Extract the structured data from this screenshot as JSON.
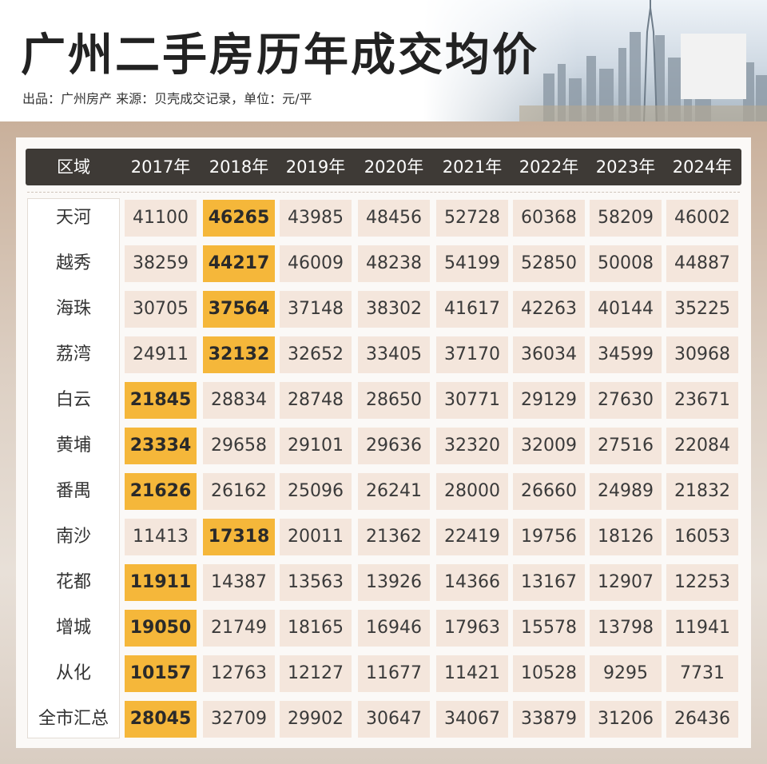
{
  "header": {
    "title": "广州二手房历年成交均价",
    "subtitle": "出品：广州房产  来源：贝壳成交记录，单位：元/平"
  },
  "colors": {
    "header_bar": "#3e3a36",
    "cell_bg": "#f4e6dc",
    "highlight": "#f5b73a",
    "panel_bg": "#c9b09b"
  },
  "chart_data": {
    "type": "table",
    "columns": [
      "区域",
      "2017年",
      "2018年",
      "2019年",
      "2020年",
      "2021年",
      "2022年",
      "2023年",
      "2024年"
    ],
    "rows": [
      {
        "region": "天河",
        "values": [
          "41100",
          "46265",
          "43985",
          "48456",
          "52728",
          "60368",
          "58209",
          "46002"
        ],
        "highlight": 1
      },
      {
        "region": "越秀",
        "values": [
          "38259",
          "44217",
          "46009",
          "48238",
          "54199",
          "52850",
          "50008",
          "44887"
        ],
        "highlight": 1
      },
      {
        "region": "海珠",
        "values": [
          "30705",
          "37564",
          "37148",
          "38302",
          "41617",
          "42263",
          "40144",
          "35225"
        ],
        "highlight": 1
      },
      {
        "region": "荔湾",
        "values": [
          "24911",
          "32132",
          "32652",
          "33405",
          "37170",
          "36034",
          "34599",
          "30968"
        ],
        "highlight": 1
      },
      {
        "region": "白云",
        "values": [
          "21845",
          "28834",
          "28748",
          "28650",
          "30771",
          "29129",
          "27630",
          "23671"
        ],
        "highlight": 0
      },
      {
        "region": "黄埔",
        "values": [
          "23334",
          "29658",
          "29101",
          "29636",
          "32320",
          "32009",
          "27516",
          "22084"
        ],
        "highlight": 0
      },
      {
        "region": "番禺",
        "values": [
          "21626",
          "26162",
          "25096",
          "26241",
          "28000",
          "26660",
          "24989",
          "21832"
        ],
        "highlight": 0
      },
      {
        "region": "南沙",
        "values": [
          "11413",
          "17318",
          "20011",
          "21362",
          "22419",
          "19756",
          "18126",
          "16053"
        ],
        "highlight": 1
      },
      {
        "region": "花都",
        "values": [
          "11911",
          "14387",
          "13563",
          "13926",
          "14366",
          "13167",
          "12907",
          "12253"
        ],
        "highlight": 0
      },
      {
        "region": "增城",
        "values": [
          "19050",
          "21749",
          "18165",
          "16946",
          "17963",
          "15578",
          "13798",
          "11941"
        ],
        "highlight": 0
      },
      {
        "region": "从化",
        "values": [
          "10157",
          "12763",
          "12127",
          "11677",
          "11421",
          "10528",
          "9295",
          "7731"
        ],
        "highlight": 0
      },
      {
        "region": "全市汇总",
        "values": [
          "28045",
          "32709",
          "29902",
          "30647",
          "34067",
          "33879",
          "31206",
          "26436"
        ],
        "highlight": 0
      }
    ]
  }
}
